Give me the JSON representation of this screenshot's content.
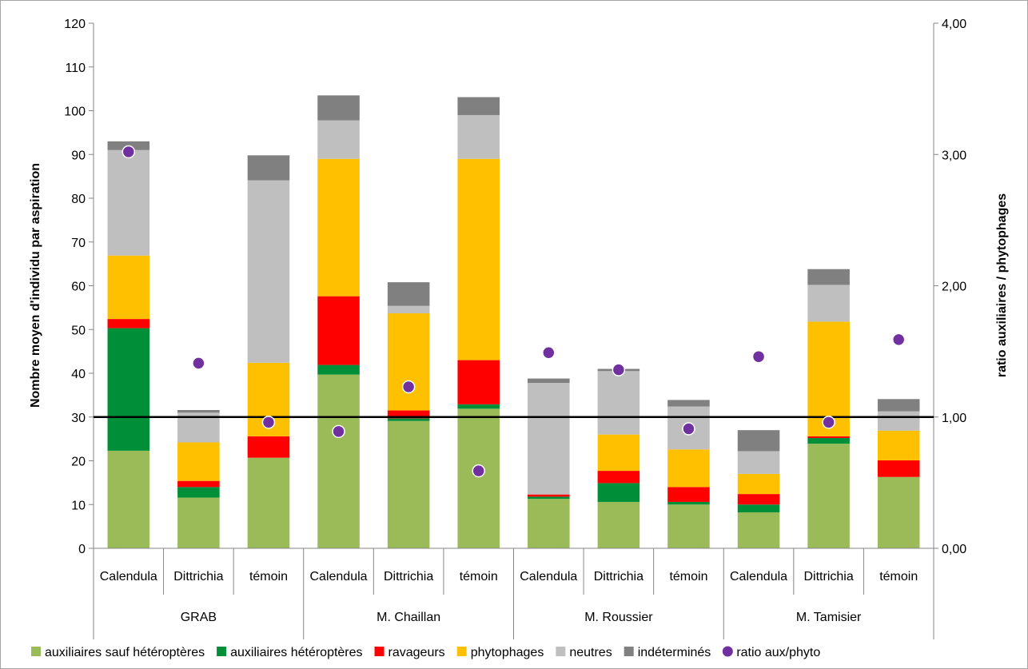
{
  "chart_data": {
    "type": "bar",
    "stacked": true,
    "title": "",
    "ylabel": "Nombre moyen d'individu par aspiration",
    "y2label": "ratio auxiliaires / phytophages",
    "ylim": [
      0,
      120
    ],
    "y2lim": [
      0,
      4
    ],
    "yticks": [
      "0",
      "10",
      "20",
      "30",
      "40",
      "50",
      "60",
      "70",
      "80",
      "90",
      "100",
      "110",
      "120"
    ],
    "y2ticks": [
      "0,00",
      "1,00",
      "2,00",
      "3,00",
      "4,00"
    ],
    "reference_line": {
      "axis": "y2",
      "value": 1.0,
      "color": "#000000"
    },
    "groups": [
      {
        "label": "GRAB",
        "categories": [
          "Calendula",
          "Dittrichia",
          "témoin"
        ]
      },
      {
        "label": "M. Chaillan",
        "categories": [
          "Calendula",
          "Dittrichia",
          "témoin"
        ]
      },
      {
        "label": "M. Roussier",
        "categories": [
          "Calendula",
          "Dittrichia",
          "témoin"
        ]
      },
      {
        "label": "M. Tamisier",
        "categories": [
          "Calendula",
          "Dittrichia",
          "témoin"
        ]
      }
    ],
    "series": [
      {
        "name": "auxiliaires sauf hétéroptères",
        "color": "#9BBB59",
        "values": [
          22.3,
          11.6,
          20.7,
          39.7,
          29.1,
          31.9,
          11.3,
          10.6,
          10.0,
          8.2,
          23.9,
          16.3
        ]
      },
      {
        "name": "auxiliaires hétéroptères",
        "color": "#008F39",
        "values": [
          28.0,
          2.4,
          0.0,
          2.2,
          0.6,
          1.0,
          0.5,
          4.3,
          0.6,
          1.8,
          1.3,
          0.0
        ]
      },
      {
        "name": "ravageurs",
        "color": "#FF0000",
        "values": [
          2.1,
          1.4,
          4.9,
          15.7,
          1.8,
          10.1,
          0.5,
          2.8,
          3.4,
          2.4,
          0.4,
          3.8
        ]
      },
      {
        "name": "phytophages",
        "color": "#FFC000",
        "values": [
          14.5,
          8.8,
          16.8,
          31.4,
          22.2,
          46.0,
          0.0,
          8.3,
          8.6,
          4.6,
          26.2,
          6.8
        ]
      },
      {
        "name": "neutres",
        "color": "#BFBFBF",
        "values": [
          24.1,
          6.8,
          41.7,
          8.8,
          1.7,
          10.0,
          25.5,
          14.5,
          9.8,
          5.2,
          8.4,
          4.4
        ]
      },
      {
        "name": "indéterminés",
        "color": "#808080",
        "values": [
          2.0,
          0.6,
          5.7,
          5.7,
          5.4,
          4.1,
          1.0,
          0.5,
          1.5,
          4.8,
          3.6,
          2.8
        ]
      }
    ],
    "ratio_series": {
      "name": "ratio aux/phyto",
      "color": "#7030A0",
      "axis": "y2",
      "values": [
        3.02,
        1.41,
        0.96,
        0.89,
        1.23,
        0.59,
        1.49,
        1.36,
        0.91,
        1.46,
        0.96,
        1.59
      ]
    },
    "legend": {
      "position": "bottom"
    },
    "grid": false
  }
}
